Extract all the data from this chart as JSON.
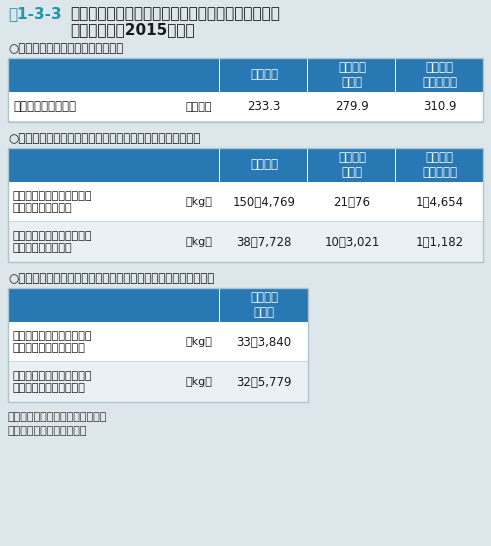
{
  "title_prefix": "表1-3-3",
  "title_prefix_color": "#2196a8",
  "title_line1": "　家電リサイクル法対象製品からのフロン類の回収",
  "title_line2": "量・破壊量（2015年度）",
  "bg_color": "#dde6ea",
  "header_bg": "#2878b4",
  "header_text_color": "#ffffff",
  "text_color": "#1a1a1a",
  "section1_label": "○廃家電４品目の再商品化実施状況",
  "section2_label": "○冷媒として使用されていたフロン類の回収重量、破壊重量",
  "section3_label": "○断熱材に含まれる液化回収したフロン類の回収重量、破壊重量",
  "col_headers_12": [
    "エアコン",
    "冷蔵庫・\n冷凍庫",
    "洗濯機・\n衣類乾燥機"
  ],
  "col_header_3": "冷蔵庫・\n冷凍庫",
  "table1_rows": [
    [
      "再商品化等処理台数",
      "【万台】",
      "233.3",
      "279.9",
      "310.9"
    ]
  ],
  "table2_rows": [
    [
      "冷媒として使用されていた\nフロン類の回収重量",
      "【kg】",
      "150万4,769",
      "21万76",
      "1万4,654"
    ],
    [
      "冷媒として使用されていた\nフロン類の破壊重量",
      "【kg】",
      "38万7,728",
      "10万3,021",
      "1万1,182"
    ]
  ],
  "table3_rows": [
    [
      "断熱材に含まれる液化回収\nしたフロン類の回収重量",
      "【kg】",
      "33万3,840"
    ],
    [
      "断熱材に含まれる液化回収\nしたフロン類の破壊重量",
      "【kg】",
      "32万5,779"
    ]
  ],
  "note1": "注：値は全て小数点以下を切捨て",
  "note2": "資料：環境省、経済産業省"
}
